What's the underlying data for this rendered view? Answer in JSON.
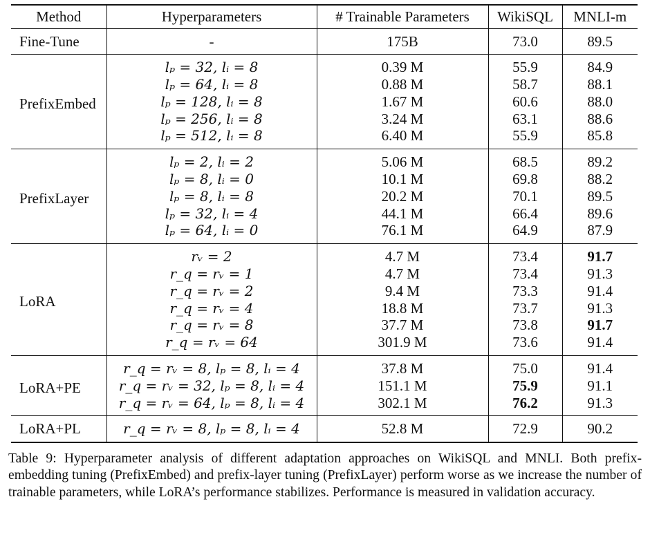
{
  "table": {
    "headers": [
      "Method",
      "Hyperparameters",
      "# Trainable Parameters",
      "WikiSQL",
      "MNLI-m"
    ],
    "groups": [
      {
        "method": "Fine-Tune",
        "rows": [
          {
            "hyper": "-",
            "params": "175B",
            "wikisql": "73.0",
            "mnli": "89.5"
          }
        ]
      },
      {
        "method": "PrefixEmbed",
        "rows": [
          {
            "hyper": "lₚ = 32, lᵢ = 8",
            "params": "0.39 M",
            "wikisql": "55.9",
            "mnli": "84.9"
          },
          {
            "hyper": "lₚ = 64, lᵢ = 8",
            "params": "0.88 M",
            "wikisql": "58.7",
            "mnli": "88.1"
          },
          {
            "hyper": "lₚ = 128, lᵢ = 8",
            "params": "1.67 M",
            "wikisql": "60.6",
            "mnli": "88.0"
          },
          {
            "hyper": "lₚ = 256, lᵢ = 8",
            "params": "3.24 M",
            "wikisql": "63.1",
            "mnli": "88.6"
          },
          {
            "hyper": "lₚ = 512, lᵢ = 8",
            "params": "6.40 M",
            "wikisql": "55.9",
            "mnli": "85.8"
          }
        ]
      },
      {
        "method": "PrefixLayer",
        "rows": [
          {
            "hyper": "lₚ = 2, lᵢ = 2",
            "params": "5.06 M",
            "wikisql": "68.5",
            "mnli": "89.2"
          },
          {
            "hyper": "lₚ = 8, lᵢ = 0",
            "params": "10.1 M",
            "wikisql": "69.8",
            "mnli": "88.2"
          },
          {
            "hyper": "lₚ = 8, lᵢ = 8",
            "params": "20.2 M",
            "wikisql": "70.1",
            "mnli": "89.5"
          },
          {
            "hyper": "lₚ = 32, lᵢ = 4",
            "params": "44.1 M",
            "wikisql": "66.4",
            "mnli": "89.6"
          },
          {
            "hyper": "lₚ = 64, lᵢ = 0",
            "params": "76.1 M",
            "wikisql": "64.9",
            "mnli": "87.9"
          }
        ]
      },
      {
        "method": "LoRA",
        "rows": [
          {
            "hyper": "rᵥ = 2",
            "params": "4.7 M",
            "wikisql": "73.4",
            "mnli": "91.7",
            "mnli_bold": true
          },
          {
            "hyper": "r_q = rᵥ = 1",
            "params": "4.7 M",
            "wikisql": "73.4",
            "mnli": "91.3"
          },
          {
            "hyper": "r_q = rᵥ = 2",
            "params": "9.4 M",
            "wikisql": "73.3",
            "mnli": "91.4"
          },
          {
            "hyper": "r_q = rᵥ = 4",
            "params": "18.8 M",
            "wikisql": "73.7",
            "mnli": "91.3"
          },
          {
            "hyper": "r_q = rᵥ = 8",
            "params": "37.7 M",
            "wikisql": "73.8",
            "mnli": "91.7",
            "mnli_bold": true
          },
          {
            "hyper": "r_q = rᵥ = 64",
            "params": "301.9 M",
            "wikisql": "73.6",
            "mnli": "91.4"
          }
        ]
      },
      {
        "method": "LoRA+PE",
        "rows": [
          {
            "hyper": "r_q = rᵥ = 8, lₚ = 8, lᵢ = 4",
            "params": "37.8 M",
            "wikisql": "75.0",
            "mnli": "91.4"
          },
          {
            "hyper": "r_q = rᵥ = 32, lₚ = 8, lᵢ = 4",
            "params": "151.1 M",
            "wikisql": "75.9",
            "mnli": "91.1",
            "wikisql_bold": true
          },
          {
            "hyper": "r_q = rᵥ = 64, lₚ = 8, lᵢ = 4",
            "params": "302.1 M",
            "wikisql": "76.2",
            "mnli": "91.3",
            "wikisql_bold": true
          }
        ]
      },
      {
        "method": "LoRA+PL",
        "rows": [
          {
            "hyper": "r_q = rᵥ = 8, lₚ = 8, lᵢ = 4",
            "params": "52.8 M",
            "wikisql": "72.9",
            "mnli": "90.2"
          }
        ]
      }
    ]
  },
  "caption": "Table 9: Hyperparameter analysis of different adaptation approaches on WikiSQL and MNLI. Both prefix-embedding tuning (PrefixEmbed) and prefix-layer tuning (PrefixLayer) perform worse as we increase the number of trainable parameters, while LoRA’s performance stabilizes. Performance is measured in validation accuracy."
}
